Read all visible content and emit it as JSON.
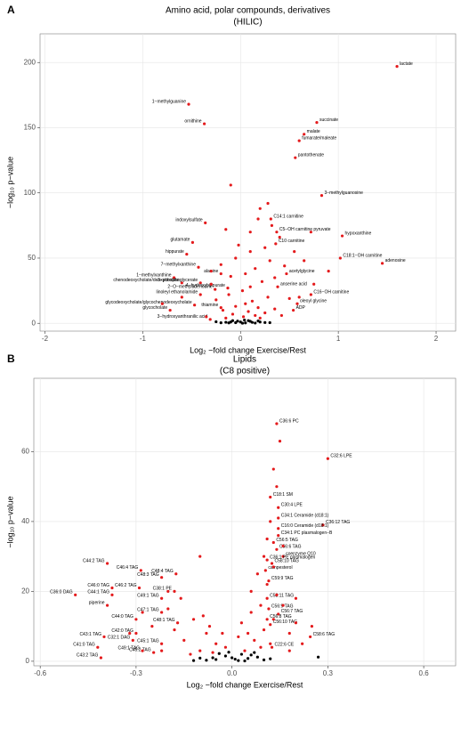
{
  "chart_data": [
    {
      "type": "scatter",
      "panel": "A",
      "title": "Amino acid, polar compounds, derivatives",
      "subtitle": "(HILIC)",
      "xlabel": "Log₂ −fold change Exercise/Rest",
      "ylabel": "−log₁₀ p−value",
      "xlim": [
        -2.05,
        2.2
      ],
      "ylim": [
        -6,
        222
      ],
      "xticks": [
        -2,
        -1,
        0,
        1,
        2
      ],
      "yticks": [
        0,
        50,
        100,
        150,
        200
      ],
      "grid": true,
      "series": [
        {
          "color": "#e41a1c",
          "x": [
            1.6,
            -0.53,
            -0.37,
            0.78,
            0.65,
            0.6,
            0.56,
            0.83,
            -0.36,
            0.31,
            0.72,
            0.37,
            1.04,
            0.36,
            -0.49,
            -0.55,
            1.02,
            1.45,
            -0.43,
            -0.2,
            0.47,
            -0.68,
            -0.6,
            -0.41,
            -0.26,
            -0.13,
            -0.41,
            -0.47,
            -0.2,
            0.38,
            0.72,
            0.58,
            0.54,
            -0.72,
            -0.31
          ],
          "y": [
            197,
            168,
            153,
            154,
            145,
            140,
            127,
            98,
            77,
            80,
            70,
            70,
            67,
            61,
            62,
            53,
            50,
            46,
            43,
            38,
            38,
            35,
            31,
            31,
            26,
            27,
            22,
            14,
            12,
            28,
            22,
            15,
            10,
            10,
            3
          ],
          "labels": [
            "lactate",
            "1−methylguanine",
            "ornithine",
            "succinate",
            "malate",
            "fumarate/maleate",
            "pantothenate",
            "3−methylguanosine",
            "indoxylsulfate",
            "C14:1 carnitine",
            "pyruvate",
            "C5−OH carnitine",
            "hypoxanthine",
            "C10 carnitine",
            "glutamate",
            "hippurate",
            "C18:1−OH carnitine",
            "adenosine",
            "7−methylxanthine",
            "alanine",
            "acetylglycine",
            "1−methylxanthine",
            "chenodeoxycholate/deoxycholate",
            "3−phosphoglycerate",
            "2−O−methyladenosine",
            "4−hydroxyhippurate",
            "linoleyl ethanolamide",
            "glycodeoxycholate/glycochenodeoxycholate",
            "thiamine",
            "anserine acid",
            "C16−OH carnitine",
            "oleoyl glycine",
            "ADP",
            "glycocholate",
            "3−hydroxyanthranilic acid"
          ]
        },
        {
          "color": "#e41a1c",
          "x": [
            -0.1,
            0.2,
            0.18,
            -0.15,
            0.4,
            0.25,
            0.1,
            -0.05,
            0.3,
            0.45,
            -0.2,
            0.15,
            0.05,
            -0.1,
            0.35,
            0.22,
            -0.3,
            0.1,
            0.02,
            -0.12,
            0.28,
            0.5,
            -0.25,
            0.12,
            0.05,
            -0.05,
            0.18,
            0.35,
            -0.18,
            0.08,
            0.25,
            -0.08,
            0.15,
            0.42,
            -0.35,
            0.03,
            0.2,
            -0.15,
            0.6,
            0.75,
            0.9,
            -0.6,
            -0.8,
            0.55,
            0.65,
            0.32,
            0.28,
            -0.02,
            0.1,
            -0.3
          ],
          "y": [
            106,
            88,
            80,
            72,
            66,
            58,
            55,
            50,
            48,
            44,
            45,
            42,
            38,
            36,
            35,
            32,
            30,
            28,
            25,
            22,
            20,
            19,
            18,
            17,
            15,
            13,
            12,
            11,
            10,
            9,
            8,
            7,
            6,
            6,
            5,
            5,
            4,
            4,
            20,
            30,
            40,
            20,
            15,
            55,
            48,
            75,
            92,
            60,
            70,
            40
          ]
        },
        {
          "color": "#000000",
          "x": [
            -0.1,
            -0.05,
            0,
            0.05,
            0.1,
            -0.15,
            0.15,
            0.2,
            -0.2,
            0.08,
            -0.08,
            0.02,
            0.25,
            -0.25,
            0.12,
            -0.12,
            0.18,
            0.3,
            -0.03,
            0.04
          ],
          "y": [
            1,
            0.5,
            1,
            0.3,
            1.5,
            0.8,
            0.2,
            1,
            0.4,
            2,
            2,
            0.1,
            0.6,
            1.2,
            0.7,
            0.3,
            1.8,
            0.5,
            1.7,
            2.5
          ]
        }
      ]
    },
    {
      "type": "scatter",
      "panel": "B",
      "title": "Lipids",
      "subtitle": "(C8 positive)",
      "xlabel": "Log₂ −fold change Exercise/Rest",
      "ylabel": "−log₁₀ p−value",
      "xlim": [
        -0.62,
        0.7
      ],
      "ylim": [
        -1.3,
        81
      ],
      "xticks": [
        -0.6,
        -0.3,
        {
          "value": 0,
          "label": "0.0"
        },
        0.3,
        0.6
      ],
      "yticks": [
        0,
        20,
        40,
        60
      ],
      "grid": true,
      "series": [
        {
          "color": "#e41a1c",
          "x": [
            0.14,
            0.3,
            0.145,
            0.12,
            0.145,
            0.285,
            0.145,
            0.145,
            0.13,
            0.14,
            0.16,
            0.11,
            0.125,
            0.105,
            0.115,
            -0.39,
            -0.285,
            -0.175,
            -0.22,
            -0.375,
            -0.29,
            -0.18,
            -0.375,
            -0.22,
            -0.39,
            -0.49,
            -0.22,
            -0.3,
            -0.17,
            -0.3,
            -0.31,
            -0.22,
            -0.245,
            -0.4,
            -0.42,
            -0.41,
            -0.28,
            0.11,
            0.115,
            0.145,
            0.11,
            0.12,
            0.125,
            0.245
          ],
          "y": [
            68,
            58,
            44,
            47,
            41,
            39,
            38,
            36,
            34,
            32,
            30,
            29,
            28,
            26,
            23,
            28,
            26,
            25,
            24,
            21,
            21,
            20,
            19,
            18,
            16,
            19,
            14,
            12,
            11,
            8,
            6,
            5,
            2.5,
            7,
            4,
            1,
            3,
            18,
            15,
            13.5,
            12,
            10.5,
            4,
            7
          ],
          "labels": [
            "C36:6 PC",
            "C32:6 LPE",
            "C30:4 LPE",
            "C18:1 SM",
            "C34:1 Ceramide (d18:1)",
            "C36:12 TAG",
            "C16:0 Ceramide (d18:1)",
            "C34:1 PC plasmalogen−B",
            "C56:5 TAG",
            "C56:6 TAG",
            "coenzyme Q10",
            "C36:1 PE plasmalogen",
            "C58:10 TAG",
            "campesterol",
            "C59:9 TAG",
            "C44:2 TAG",
            "C46:4 TAG",
            "C48:4 TAG",
            "C48:3 TAG",
            "C46:0 TAG",
            "C46:2 TAG",
            "C38:1 PE",
            "C44:1 TAG",
            "C49:1 TAG",
            "piperine",
            "C36:0 DAG",
            "C47:1 TAG",
            "C44:0 TAG",
            "C48:1 TAG",
            "C42:0 TAG",
            "C32:1 DAG",
            "C45:1 TAG",
            "C45:2 TAG",
            "C43:1 TAG",
            "C41:0 TAG",
            "C43:2 TAG",
            "C49:1 TAG",
            "C58:11 TAG",
            "C56:9 TAG",
            "C56:7 TAG",
            "C56:8 TAG",
            "C56:10 TAG",
            "C22:6 CE",
            "C58:6 TAG"
          ]
        },
        {
          "color": "#e41a1c",
          "x": [
            0.15,
            0.13,
            0.14,
            0.12,
            0.16,
            0.1,
            0.08,
            0.06,
            0.11,
            0.14,
            0.09,
            0.13,
            0.1,
            0.05,
            0.07,
            0.12,
            0.18,
            0.2,
            0.22,
            0.04,
            -0.05,
            -0.08,
            -0.1,
            -0.12,
            -0.15,
            -0.18,
            -0.02,
            -0.06,
            -0.09,
            -0.2,
            -0.13,
            -0.25,
            -0.28,
            -0.32,
            -0.1,
            -0.2,
            -0.16,
            0.02,
            0.18,
            0.25,
            0.06,
            0.16,
            0.11,
            0.13,
            -0.07,
            -0.03,
            0.09,
            -0.22,
            0.2,
            0.03
          ],
          "y": [
            63,
            55,
            50,
            40,
            33,
            30,
            25,
            20,
            22,
            19,
            16,
            12,
            9,
            8,
            6,
            5,
            8,
            11,
            5,
            3,
            5,
            8,
            3,
            12,
            6,
            9,
            4,
            2.5,
            13,
            15,
            2,
            10,
            14,
            8,
            30,
            20,
            18,
            7,
            3,
            10,
            14,
            16,
            35,
            27,
            10,
            8,
            4,
            3,
            18,
            11
          ]
        },
        {
          "color": "#000000",
          "x": [
            -0.05,
            0,
            0.02,
            -0.02,
            0.05,
            -0.08,
            0.08,
            -0.1,
            0.1,
            0.03,
            -0.04,
            0.06,
            -0.06,
            0.01,
            0.12,
            -0.12,
            0.27,
            0.04,
            -0.01,
            0.07
          ],
          "y": [
            0.5,
            1,
            0.2,
            1.5,
            0.8,
            0.3,
            1.2,
            0.9,
            0.4,
            2,
            2.2,
            1.8,
            1,
            0.6,
            0.7,
            0.2,
            1.2,
            0.1,
            2.6,
            2.5
          ]
        }
      ]
    }
  ]
}
